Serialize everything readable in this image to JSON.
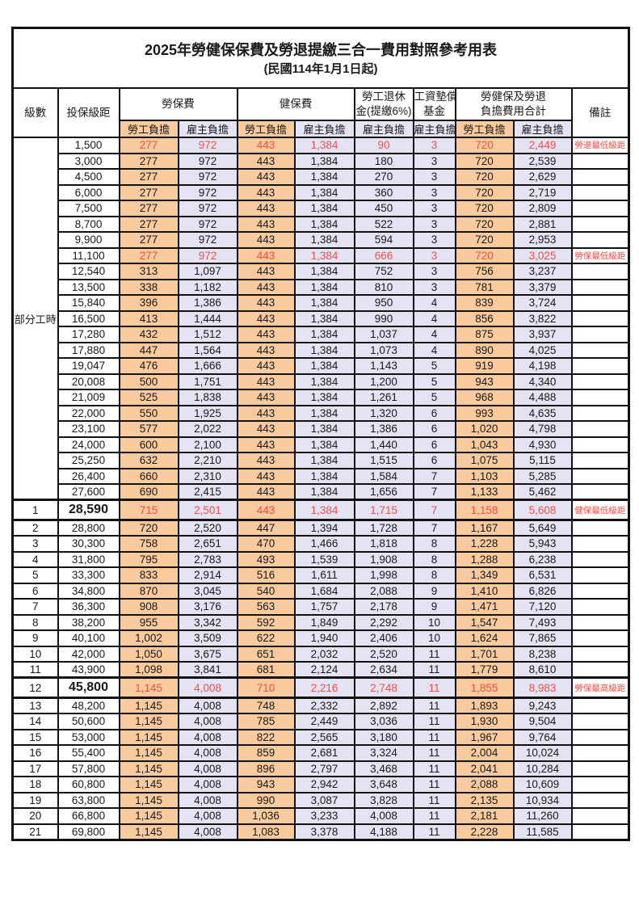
{
  "title": "2025年勞健保保費及勞退提繳三合一費用對照參考用表",
  "subtitle": "(民國114年1月1日起)",
  "colors": {
    "employee_col_bg": "#f8ca9d",
    "employer_col_bg": "#e3e3f3",
    "highlight_text": "#f25048",
    "border": "#121212",
    "page_bg": "#ffffff"
  },
  "header": {
    "level": "級數",
    "bracket": "投保級距",
    "labor_insurance": "勞保費",
    "health_insurance": "健保費",
    "pension_line1": "勞工退休",
    "pension_line2": "金(提繳6%)",
    "wage_fund_line1": "工資墊償",
    "wage_fund_line2": "基金",
    "total_line1": "勞健保及勞退",
    "total_line2": "負擔費用合計",
    "remark": "備註",
    "employee": "勞工負擔",
    "employer": "雇主負擔"
  },
  "part_time_label": "部分工時",
  "rows": [
    {
      "lv": "",
      "br": "1,500",
      "v": [
        "277",
        "972",
        "443",
        "1,384",
        "90",
        "3",
        "720",
        "2,449"
      ],
      "rm": "勞退最低級距",
      "red": true,
      "hl": false
    },
    {
      "lv": "",
      "br": "3,000",
      "v": [
        "277",
        "972",
        "443",
        "1,384",
        "180",
        "3",
        "720",
        "2,539"
      ],
      "rm": "",
      "red": false,
      "hl": false
    },
    {
      "lv": "",
      "br": "4,500",
      "v": [
        "277",
        "972",
        "443",
        "1,384",
        "270",
        "3",
        "720",
        "2,629"
      ],
      "rm": "",
      "red": false,
      "hl": false
    },
    {
      "lv": "",
      "br": "6,000",
      "v": [
        "277",
        "972",
        "443",
        "1,384",
        "360",
        "3",
        "720",
        "2,719"
      ],
      "rm": "",
      "red": false,
      "hl": false
    },
    {
      "lv": "",
      "br": "7,500",
      "v": [
        "277",
        "972",
        "443",
        "1,384",
        "450",
        "3",
        "720",
        "2,809"
      ],
      "rm": "",
      "red": false,
      "hl": false
    },
    {
      "lv": "",
      "br": "8,700",
      "v": [
        "277",
        "972",
        "443",
        "1,384",
        "522",
        "3",
        "720",
        "2,881"
      ],
      "rm": "",
      "red": false,
      "hl": false
    },
    {
      "lv": "",
      "br": "9,900",
      "v": [
        "277",
        "972",
        "443",
        "1,384",
        "594",
        "3",
        "720",
        "2,953"
      ],
      "rm": "",
      "red": false,
      "hl": false
    },
    {
      "lv": "",
      "br": "11,100",
      "v": [
        "277",
        "972",
        "443",
        "1,384",
        "666",
        "3",
        "720",
        "3,025"
      ],
      "rm": "勞保最低級距",
      "red": true,
      "hl": false
    },
    {
      "lv": "",
      "br": "12,540",
      "v": [
        "313",
        "1,097",
        "443",
        "1,384",
        "752",
        "3",
        "756",
        "3,237"
      ],
      "rm": "",
      "red": false,
      "hl": false
    },
    {
      "lv": "",
      "br": "13,500",
      "v": [
        "338",
        "1,182",
        "443",
        "1,384",
        "810",
        "3",
        "781",
        "3,379"
      ],
      "rm": "",
      "red": false,
      "hl": false
    },
    {
      "lv": "",
      "br": "15,840",
      "v": [
        "396",
        "1,386",
        "443",
        "1,384",
        "950",
        "4",
        "839",
        "3,724"
      ],
      "rm": "",
      "red": false,
      "hl": false
    },
    {
      "lv": "",
      "br": "16,500",
      "v": [
        "413",
        "1,444",
        "443",
        "1,384",
        "990",
        "4",
        "856",
        "3,822"
      ],
      "rm": "",
      "red": false,
      "hl": false
    },
    {
      "lv": "",
      "br": "17,280",
      "v": [
        "432",
        "1,512",
        "443",
        "1,384",
        "1,037",
        "4",
        "875",
        "3,937"
      ],
      "rm": "",
      "red": false,
      "hl": false
    },
    {
      "lv": "",
      "br": "17,880",
      "v": [
        "447",
        "1,564",
        "443",
        "1,384",
        "1,073",
        "4",
        "890",
        "4,025"
      ],
      "rm": "",
      "red": false,
      "hl": false
    },
    {
      "lv": "",
      "br": "19,047",
      "v": [
        "476",
        "1,666",
        "443",
        "1,384",
        "1,143",
        "5",
        "919",
        "4,198"
      ],
      "rm": "",
      "red": false,
      "hl": false
    },
    {
      "lv": "",
      "br": "20,008",
      "v": [
        "500",
        "1,751",
        "443",
        "1,384",
        "1,200",
        "5",
        "943",
        "4,340"
      ],
      "rm": "",
      "red": false,
      "hl": false
    },
    {
      "lv": "",
      "br": "21,009",
      "v": [
        "525",
        "1,838",
        "443",
        "1,384",
        "1,261",
        "5",
        "968",
        "4,488"
      ],
      "rm": "",
      "red": false,
      "hl": false
    },
    {
      "lv": "",
      "br": "22,000",
      "v": [
        "550",
        "1,925",
        "443",
        "1,384",
        "1,320",
        "6",
        "993",
        "4,635"
      ],
      "rm": "",
      "red": false,
      "hl": false
    },
    {
      "lv": "",
      "br": "23,100",
      "v": [
        "577",
        "2,022",
        "443",
        "1,384",
        "1,386",
        "6",
        "1,020",
        "4,798"
      ],
      "rm": "",
      "red": false,
      "hl": false
    },
    {
      "lv": "",
      "br": "24,000",
      "v": [
        "600",
        "2,100",
        "443",
        "1,384",
        "1,440",
        "6",
        "1,043",
        "4,930"
      ],
      "rm": "",
      "red": false,
      "hl": false
    },
    {
      "lv": "",
      "br": "25,250",
      "v": [
        "632",
        "2,210",
        "443",
        "1,384",
        "1,515",
        "6",
        "1,075",
        "5,115"
      ],
      "rm": "",
      "red": false,
      "hl": false
    },
    {
      "lv": "",
      "br": "26,400",
      "v": [
        "660",
        "2,310",
        "443",
        "1,384",
        "1,584",
        "7",
        "1,103",
        "5,285"
      ],
      "rm": "",
      "red": false,
      "hl": false
    },
    {
      "lv": "",
      "br": "27,600",
      "v": [
        "690",
        "2,415",
        "443",
        "1,384",
        "1,656",
        "7",
        "1,133",
        "5,462"
      ],
      "rm": "",
      "red": false,
      "hl": false
    },
    {
      "lv": "1",
      "br": "28,590",
      "v": [
        "715",
        "2,501",
        "443",
        "1,384",
        "1,715",
        "7",
        "1,158",
        "5,608"
      ],
      "rm": "健保最低級距",
      "red": true,
      "hl": true
    },
    {
      "lv": "2",
      "br": "28,800",
      "v": [
        "720",
        "2,520",
        "447",
        "1,394",
        "1,728",
        "7",
        "1,167",
        "5,649"
      ],
      "rm": "",
      "red": false,
      "hl": false
    },
    {
      "lv": "3",
      "br": "30,300",
      "v": [
        "758",
        "2,651",
        "470",
        "1,466",
        "1,818",
        "8",
        "1,228",
        "5,943"
      ],
      "rm": "",
      "red": false,
      "hl": false
    },
    {
      "lv": "4",
      "br": "31,800",
      "v": [
        "795",
        "2,783",
        "493",
        "1,539",
        "1,908",
        "8",
        "1,288",
        "6,238"
      ],
      "rm": "",
      "red": false,
      "hl": false
    },
    {
      "lv": "5",
      "br": "33,300",
      "v": [
        "833",
        "2,914",
        "516",
        "1,611",
        "1,998",
        "8",
        "1,349",
        "6,531"
      ],
      "rm": "",
      "red": false,
      "hl": false
    },
    {
      "lv": "6",
      "br": "34,800",
      "v": [
        "870",
        "3,045",
        "540",
        "1,684",
        "2,088",
        "9",
        "1,410",
        "6,826"
      ],
      "rm": "",
      "red": false,
      "hl": false
    },
    {
      "lv": "7",
      "br": "36,300",
      "v": [
        "908",
        "3,176",
        "563",
        "1,757",
        "2,178",
        "9",
        "1,471",
        "7,120"
      ],
      "rm": "",
      "red": false,
      "hl": false
    },
    {
      "lv": "8",
      "br": "38,200",
      "v": [
        "955",
        "3,342",
        "592",
        "1,849",
        "2,292",
        "10",
        "1,547",
        "7,493"
      ],
      "rm": "",
      "red": false,
      "hl": false
    },
    {
      "lv": "9",
      "br": "40,100",
      "v": [
        "1,002",
        "3,509",
        "622",
        "1,940",
        "2,406",
        "10",
        "1,624",
        "7,865"
      ],
      "rm": "",
      "red": false,
      "hl": false
    },
    {
      "lv": "10",
      "br": "42,000",
      "v": [
        "1,050",
        "3,675",
        "651",
        "2,032",
        "2,520",
        "11",
        "1,701",
        "8,238"
      ],
      "rm": "",
      "red": false,
      "hl": false
    },
    {
      "lv": "11",
      "br": "43,900",
      "v": [
        "1,098",
        "3,841",
        "681",
        "2,124",
        "2,634",
        "11",
        "1,779",
        "8,610"
      ],
      "rm": "",
      "red": false,
      "hl": false
    },
    {
      "lv": "12",
      "br": "45,800",
      "v": [
        "1,145",
        "4,008",
        "710",
        "2,216",
        "2,748",
        "11",
        "1,855",
        "8,983"
      ],
      "rm": "勞保最高級距",
      "red": true,
      "hl": true
    },
    {
      "lv": "13",
      "br": "48,200",
      "v": [
        "1,145",
        "4,008",
        "748",
        "2,332",
        "2,892",
        "11",
        "1,893",
        "9,243"
      ],
      "rm": "",
      "red": false,
      "hl": false
    },
    {
      "lv": "14",
      "br": "50,600",
      "v": [
        "1,145",
        "4,008",
        "785",
        "2,449",
        "3,036",
        "11",
        "1,930",
        "9,504"
      ],
      "rm": "",
      "red": false,
      "hl": false
    },
    {
      "lv": "15",
      "br": "53,000",
      "v": [
        "1,145",
        "4,008",
        "822",
        "2,565",
        "3,180",
        "11",
        "1,967",
        "9,764"
      ],
      "rm": "",
      "red": false,
      "hl": false
    },
    {
      "lv": "16",
      "br": "55,400",
      "v": [
        "1,145",
        "4,008",
        "859",
        "2,681",
        "3,324",
        "11",
        "2,004",
        "10,024"
      ],
      "rm": "",
      "red": false,
      "hl": false
    },
    {
      "lv": "17",
      "br": "57,800",
      "v": [
        "1,145",
        "4,008",
        "896",
        "2,797",
        "3,468",
        "11",
        "2,041",
        "10,284"
      ],
      "rm": "",
      "red": false,
      "hl": false
    },
    {
      "lv": "18",
      "br": "60,800",
      "v": [
        "1,145",
        "4,008",
        "943",
        "2,942",
        "3,648",
        "11",
        "2,088",
        "10,609"
      ],
      "rm": "",
      "red": false,
      "hl": false
    },
    {
      "lv": "19",
      "br": "63,800",
      "v": [
        "1,145",
        "4,008",
        "990",
        "3,087",
        "3,828",
        "11",
        "2,135",
        "10,934"
      ],
      "rm": "",
      "red": false,
      "hl": false
    },
    {
      "lv": "20",
      "br": "66,800",
      "v": [
        "1,145",
        "4,008",
        "1,036",
        "3,233",
        "4,008",
        "11",
        "2,181",
        "11,260"
      ],
      "rm": "",
      "red": false,
      "hl": false
    },
    {
      "lv": "21",
      "br": "69,800",
      "v": [
        "1,145",
        "4,008",
        "1,083",
        "3,378",
        "4,188",
        "11",
        "2,228",
        "11,585"
      ],
      "rm": "",
      "red": false,
      "hl": false
    }
  ],
  "column_kinds": [
    "emp",
    "er",
    "emp",
    "er",
    "er",
    "er",
    "emp",
    "er"
  ]
}
